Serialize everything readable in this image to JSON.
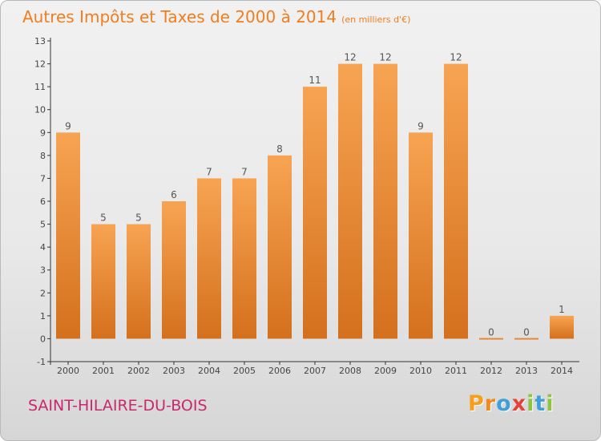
{
  "title": "Autres Impôts et Taxes de 2000 à 2014",
  "title_unit": "(en milliers d'€)",
  "commune": "SAINT-HILAIRE-DU-BOIS",
  "brand": {
    "text": "Proxiti",
    "letters": [
      "P",
      "r",
      "o",
      "x",
      "i",
      "t",
      "i"
    ],
    "colors": [
      "#f59f1b",
      "#f08a1a",
      "#3fa0d8",
      "#e5423a",
      "#8dc540",
      "#3fa0d8",
      "#8dc540"
    ]
  },
  "colors": {
    "title": "#f07d1e",
    "commune": "#c8286e",
    "bar_light": "#f7a452",
    "bar_dark": "#d4701d"
  },
  "chart_data": {
    "type": "bar",
    "title": "Autres Impôts et Taxes de 2000 à 2014",
    "subtitle": "(en milliers d'€)",
    "categories": [
      "2000",
      "2001",
      "2002",
      "2003",
      "2004",
      "2005",
      "2006",
      "2007",
      "2008",
      "2009",
      "2010",
      "2011",
      "2012",
      "2013",
      "2014"
    ],
    "values": [
      9,
      5,
      5,
      6,
      7,
      7,
      8,
      11,
      12,
      12,
      9,
      12,
      0,
      0,
      1
    ],
    "data_labels": [
      "9",
      "5",
      "5",
      "6",
      "7",
      "7",
      "8",
      "11",
      "12",
      "12",
      "9",
      "12",
      "0",
      "0",
      "1"
    ],
    "yticks": [
      "-1",
      "0",
      "1",
      "2",
      "3",
      "4",
      "5",
      "6",
      "7",
      "8",
      "9",
      "10",
      "11",
      "12",
      "13"
    ],
    "ylim": [
      -1,
      13
    ],
    "xlabel": "",
    "ylabel": "",
    "grid": false,
    "legend": "none"
  }
}
